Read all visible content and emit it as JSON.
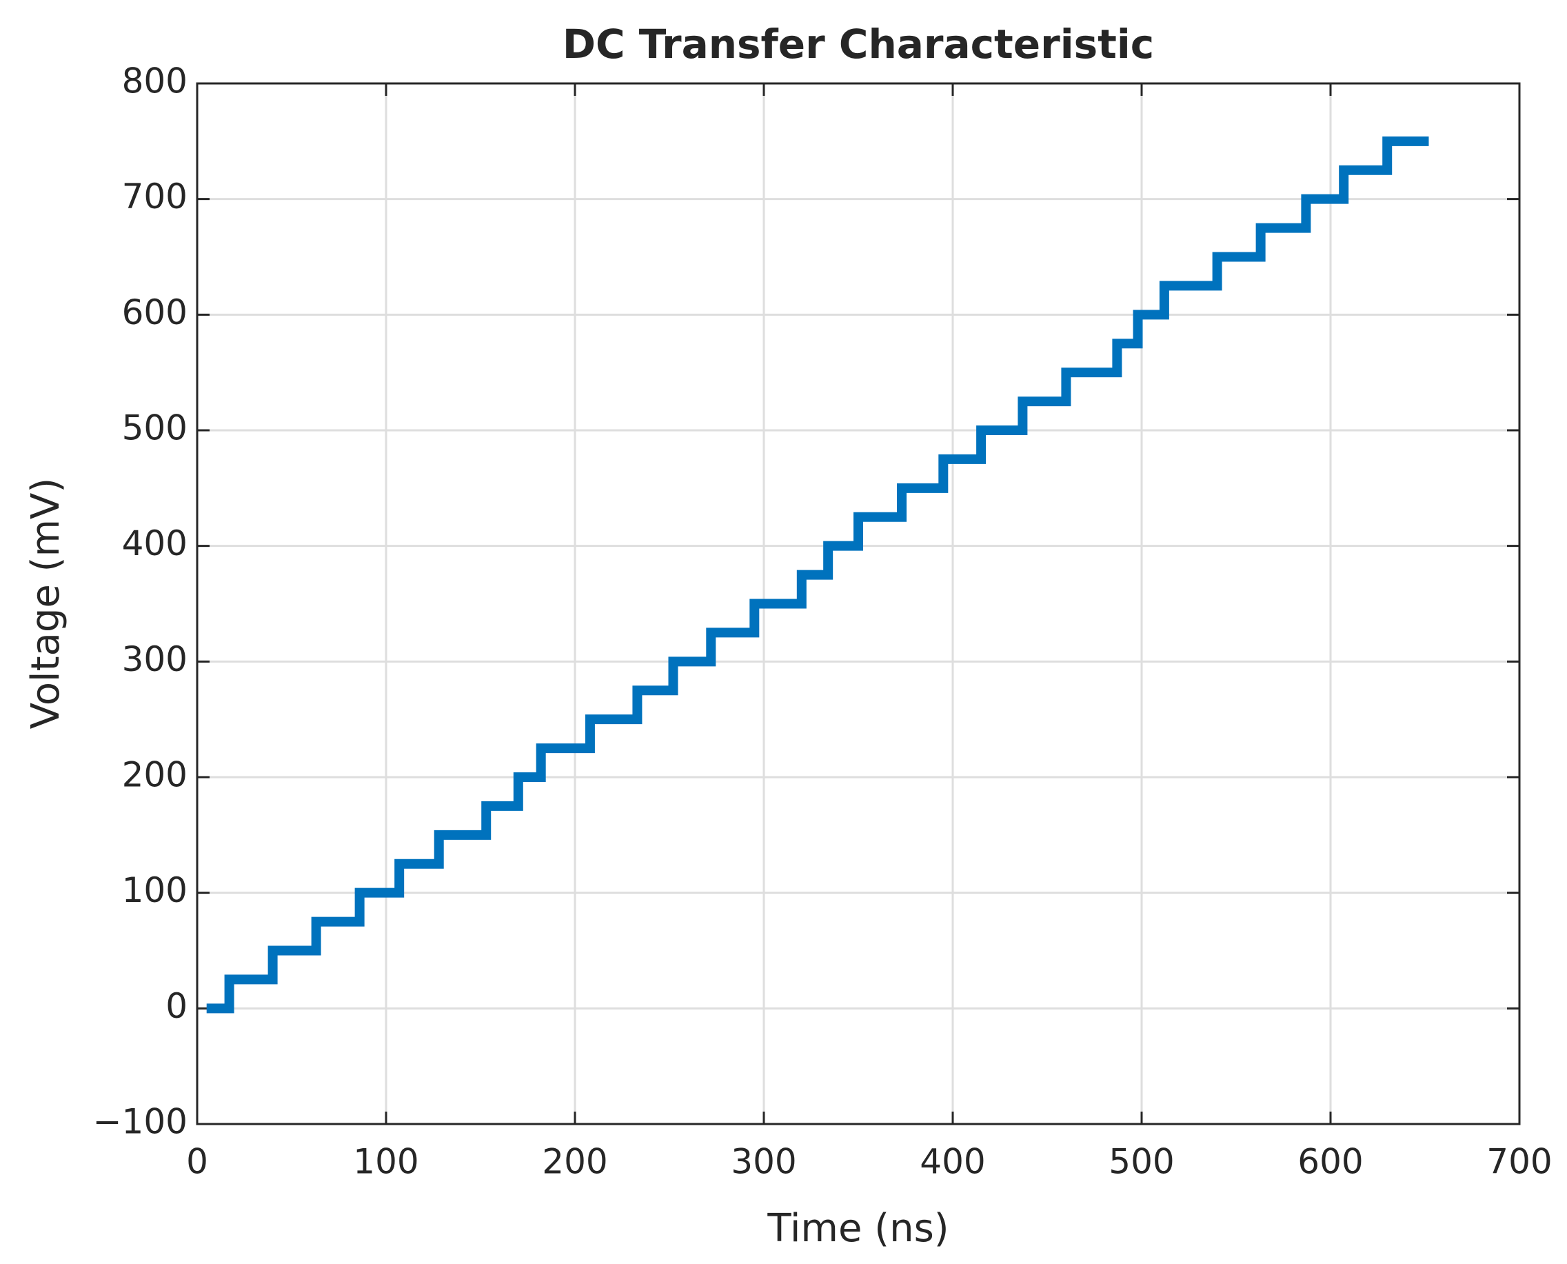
{
  "chart_data": {
    "type": "line",
    "title": "DC Transfer Characteristic",
    "x_label": "Time (ns)",
    "y_label": "Voltage (mV)",
    "xlim": [
      0,
      700
    ],
    "xticks": [
      0,
      100,
      200,
      300,
      400,
      500,
      600,
      700
    ],
    "ylim": [
      -100,
      800
    ],
    "yticks": [
      {
        "value": -100,
        "label": "−100"
      },
      0,
      100,
      200,
      300,
      400,
      500,
      600,
      700,
      800
    ],
    "grid": true,
    "series": [
      {
        "color": "#0072bd",
        "x": [
          5,
          17,
          17,
          40,
          40,
          63,
          63,
          86,
          86,
          107,
          107,
          128,
          128,
          153,
          153,
          170,
          170,
          182,
          182,
          208,
          208,
          233,
          233,
          252,
          252,
          272,
          272,
          295,
          295,
          320,
          320,
          334,
          334,
          350,
          350,
          373,
          373,
          395,
          395,
          415,
          415,
          437,
          437,
          460,
          460,
          487,
          487,
          498,
          498,
          512,
          512,
          540,
          540,
          563,
          563,
          587,
          587,
          607,
          607,
          630,
          630,
          652
        ],
        "values": [
          0,
          0,
          25,
          25,
          50,
          50,
          75,
          75,
          100,
          100,
          125,
          125,
          150,
          150,
          175,
          175,
          200,
          200,
          225,
          225,
          250,
          250,
          275,
          275,
          300,
          300,
          325,
          325,
          350,
          350,
          375,
          375,
          400,
          400,
          425,
          425,
          450,
          450,
          475,
          475,
          500,
          500,
          525,
          525,
          550,
          550,
          575,
          575,
          600,
          600,
          625,
          625,
          650,
          650,
          675,
          675,
          700,
          700,
          725,
          725,
          750,
          750
        ]
      }
    ]
  }
}
